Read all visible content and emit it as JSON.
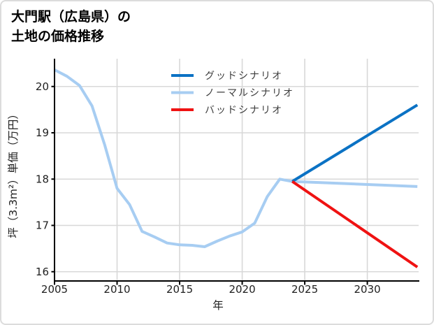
{
  "title": {
    "line1": "大門駅（広島県）の",
    "line2": "土地の価格推移"
  },
  "chart_data": {
    "type": "line",
    "title": "大門駅（広島県）の土地の価格推移",
    "xlabel": "年",
    "ylabel": "坪（3.3m²）単価（万円）",
    "x_ticks": [
      2005,
      2010,
      2015,
      2020,
      2025,
      2030
    ],
    "y_ticks": [
      16,
      17,
      18,
      19,
      20
    ],
    "xlim": [
      2005,
      2034.1
    ],
    "ylim": [
      15.8,
      20.6
    ],
    "grid": true,
    "legend_position": "inside-top-center",
    "colors": {
      "grid": "#d8d8d8",
      "axis": "#000000",
      "tick_text": "#1f1f1f",
      "legend_text": "#3d3d3d"
    },
    "series": [
      {
        "name": "グッドシナリオ",
        "color": "#0b72c4",
        "x": [
          2024,
          2034
        ],
        "values": [
          17.95,
          19.6
        ]
      },
      {
        "name": "ノーマルシナリオ",
        "color": "#a7cdf2",
        "x": [
          2005,
          2006,
          2007,
          2008,
          2009,
          2010,
          2011,
          2012,
          2013,
          2014,
          2015,
          2016,
          2017,
          2018,
          2019,
          2020,
          2021,
          2022,
          2023,
          2024,
          2034
        ],
        "values": [
          20.36,
          20.22,
          20.02,
          19.58,
          18.75,
          17.8,
          17.45,
          16.87,
          16.75,
          16.62,
          16.58,
          16.57,
          16.54,
          16.66,
          16.77,
          16.86,
          17.05,
          17.62,
          18.0,
          17.95,
          17.84
        ]
      },
      {
        "name": "バッドシナリオ",
        "color": "#ef1212",
        "x": [
          2024,
          2034
        ],
        "values": [
          17.95,
          16.1
        ]
      }
    ]
  }
}
